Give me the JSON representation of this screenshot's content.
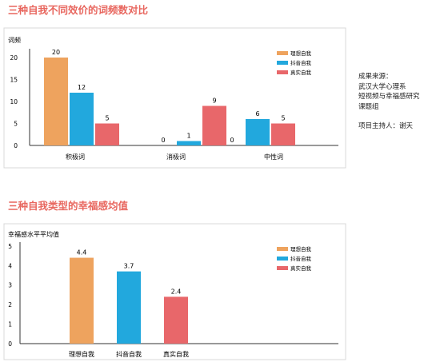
{
  "colors": {
    "title": "#e8675f",
    "ideal": "#eea35e",
    "douyin": "#22a8dd",
    "real": "#e8676a",
    "axis": "#333333",
    "panel_border": "#d8d8d8"
  },
  "chart_data": [
    {
      "type": "bar",
      "title": "三种自我不同效价的词频数对比",
      "ylabel": "词频",
      "xlabel": "",
      "categories": [
        "积极词",
        "消极词",
        "中性词"
      ],
      "yticks": [
        "0",
        "5",
        "10",
        "15",
        "20"
      ],
      "ylim": [
        0,
        22
      ],
      "grid": false,
      "legend_position": "top-right",
      "series": [
        {
          "name": "理想自我",
          "values": [
            20,
            0,
            0
          ],
          "labels": [
            "20",
            "0",
            "0"
          ]
        },
        {
          "name": "抖音自我",
          "values": [
            12,
            1,
            6
          ],
          "labels": [
            "12",
            "1",
            "6"
          ]
        },
        {
          "name": "真实自我",
          "values": [
            5,
            9,
            5
          ],
          "labels": [
            "5",
            "9",
            "5"
          ]
        }
      ]
    },
    {
      "type": "bar",
      "title": "三种自我类型的幸福感均值",
      "ylabel": "幸福感水平平均值",
      "xlabel": "",
      "categories": [
        "理想自我",
        "抖音自我",
        "真实自我"
      ],
      "yticks": [
        "0",
        "1",
        "2",
        "3",
        "4",
        "5"
      ],
      "ylim": [
        0,
        5.2
      ],
      "grid": false,
      "legend_position": "top-right",
      "values": [
        4.4,
        3.7,
        2.4
      ],
      "labels": [
        "4.4",
        "3.7",
        "2.4"
      ],
      "legend": [
        "理想自我",
        "抖音自我",
        "真实自我"
      ]
    }
  ],
  "source": {
    "lines": [
      "成果来源：",
      "武汉大学心理系",
      "短视频与幸福感研究",
      "课题组"
    ],
    "host": "项目主持人：谢天"
  }
}
